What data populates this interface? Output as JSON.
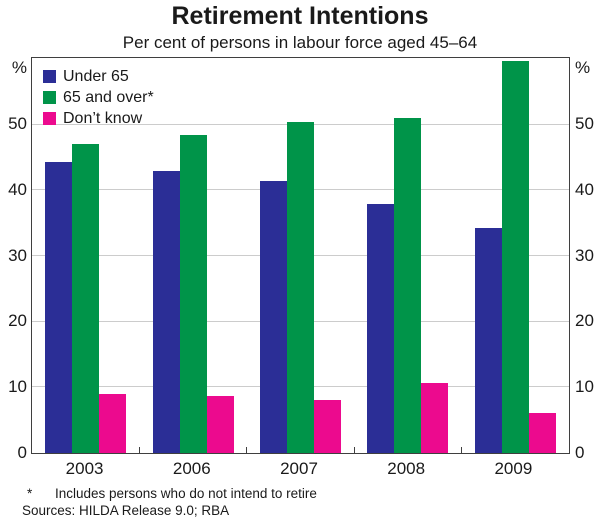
{
  "title": "Retirement Intentions",
  "subtitle": "Per cent of persons in labour force aged 45–64",
  "footnotes": {
    "asterisk": "*",
    "note": "Includes persons who do not intend to retire",
    "sources": "Sources: HILDA Release 9.0; RBA"
  },
  "chart_data": {
    "type": "bar",
    "title": "Retirement Intentions",
    "subtitle": "Per cent of persons in labour force aged 45–64",
    "categories": [
      "2003",
      "2006",
      "2007",
      "2008",
      "2009"
    ],
    "series": [
      {
        "name": "Under 65",
        "color": "#2b2e96",
        "values": [
          44.3,
          43.0,
          41.5,
          38.0,
          34.3
        ]
      },
      {
        "name": "65 and over*",
        "color": "#009449",
        "values": [
          47.0,
          48.5,
          50.4,
          51.0,
          59.7
        ]
      },
      {
        "name": "Don’t know",
        "color": "#ec0a8e",
        "values": [
          9.0,
          8.7,
          8.1,
          10.7,
          6.1
        ]
      }
    ],
    "ylabel": "%",
    "unit_label": "%",
    "ylim": [
      0,
      60
    ],
    "yticks": [
      0,
      10,
      20,
      30,
      40,
      50
    ],
    "grid": true,
    "legend_position": "top-left",
    "gridline_color": "#cccccc",
    "frame_color": "#3f3f3f"
  }
}
